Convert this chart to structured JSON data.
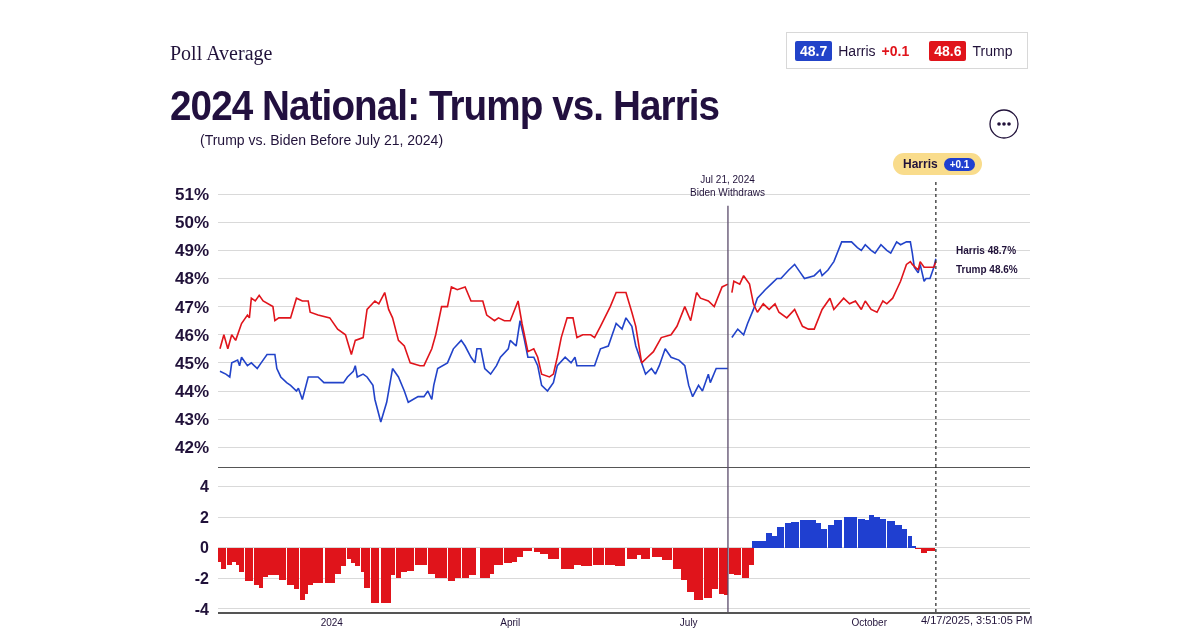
{
  "chart_data": [
    {
      "type": "line",
      "title": "2024 National: Trump vs. Harris",
      "subtitle": "(Trump vs. Biden Before July 21, 2024)",
      "legend": "top right",
      "grid": "y",
      "tick_labels": "y",
      "xlim": [
        "2023-11-04",
        "2024-12-22"
      ],
      "ylim": [
        41.3,
        51.5
      ],
      "yticks": [
        {
          "value": 42,
          "label": "42%"
        },
        {
          "value": 43,
          "label": "43%"
        },
        {
          "value": 44,
          "label": "44%"
        },
        {
          "value": 45,
          "label": "45%"
        },
        {
          "value": 46,
          "label": "46%"
        },
        {
          "value": 47,
          "label": "47%"
        },
        {
          "value": 48,
          "label": "48%"
        },
        {
          "value": 49,
          "label": "49%"
        },
        {
          "value": 50,
          "label": "50%"
        },
        {
          "value": 51,
          "label": "51%"
        }
      ],
      "ref_lines": [
        {
          "axis": "x",
          "value": "2024-07-21",
          "label": "Jul 21, 2024\nBiden Withdraws",
          "color": "#5a4a6a",
          "line_style": "solid"
        },
        {
          "axis": "x",
          "value": "2024-11-04",
          "label": null,
          "color": "#333333",
          "line_style": "dotted"
        }
      ],
      "annotations": [
        "Poll Average",
        "48.7",
        "+0.1",
        "48.6",
        "Harris",
        "+0.1",
        {
          "text": "Harris 48.7%",
          "x": "2024-11-04",
          "y": 48.7
        },
        {
          "text": "Trump 48.6%",
          "x": "2024-11-04",
          "y": 48.6
        }
      ],
      "series": [
        {
          "name": "Harris",
          "color": "#2243c9",
          "x": [
            "2023-11-05",
            "2023-11-08",
            "2023-11-10",
            "2023-11-11",
            "2023-11-14",
            "2023-11-15",
            "2023-11-16",
            "2023-11-19",
            "2023-11-21",
            "2023-11-24",
            "2023-11-26",
            "2023-11-29",
            "2023-12-03",
            "2023-12-04",
            "2023-12-06",
            "2023-12-09",
            "2023-12-11",
            "2023-12-14",
            "2023-12-15",
            "2023-12-17",
            "2023-12-20",
            "2023-12-25",
            "2023-12-28",
            "2023-12-31",
            "2024-01-04",
            "2024-01-07",
            "2024-01-09",
            "2024-01-12",
            "2024-01-13",
            "2024-01-14",
            "2024-01-17",
            "2024-01-19",
            "2024-01-22",
            "2024-01-23",
            "2024-01-26",
            "2024-01-29",
            "2024-01-30",
            "2024-02-01",
            "2024-02-04",
            "2024-02-07",
            "2024-02-09",
            "2024-02-14",
            "2024-02-17",
            "2024-02-19",
            "2024-02-21",
            "2024-02-22",
            "2024-02-24",
            "2024-02-29",
            "2024-03-03",
            "2024-03-07",
            "2024-03-09",
            "2024-03-12",
            "2024-03-14",
            "2024-03-15",
            "2024-03-17",
            "2024-03-19",
            "2024-03-22",
            "2024-03-25",
            "2024-03-27",
            "2024-03-31",
            "2024-04-01",
            "2024-04-04",
            "2024-04-06",
            "2024-04-08",
            "2024-04-10",
            "2024-04-13",
            "2024-04-15",
            "2024-04-17",
            "2024-04-20",
            "2024-04-23",
            "2024-04-25",
            "2024-04-29",
            "2024-05-02",
            "2024-05-04",
            "2024-05-05",
            "2024-05-14",
            "2024-05-17",
            "2024-05-21",
            "2024-05-23",
            "2024-05-25",
            "2024-05-28",
            "2024-05-30",
            "2024-06-02",
            "2024-06-04",
            "2024-06-08",
            "2024-06-09",
            "2024-06-12",
            "2024-06-14",
            "2024-06-16",
            "2024-06-19",
            "2024-06-22",
            "2024-06-26",
            "2024-06-29",
            "2024-07-01",
            "2024-07-03",
            "2024-07-06",
            "2024-07-08",
            "2024-07-11",
            "2024-07-12",
            "2024-07-15",
            "2024-07-18",
            "2024-07-21",
            "2024-07-22",
            "2024-07-23",
            "2024-07-26",
            "2024-07-29",
            "2024-07-31",
            "2024-08-03",
            "2024-08-05",
            "2024-08-09",
            "2024-08-12",
            "2024-08-15",
            "2024-08-17",
            "2024-08-21",
            "2024-08-24",
            "2024-08-27",
            "2024-08-29",
            "2024-09-03",
            "2024-09-06",
            "2024-09-07",
            "2024-09-10",
            "2024-09-12",
            "2024-09-13",
            "2024-09-17",
            "2024-09-19",
            "2024-09-22",
            "2024-09-25",
            "2024-09-27",
            "2024-09-29",
            "2024-10-02",
            "2024-10-04",
            "2024-10-07",
            "2024-10-10",
            "2024-10-12",
            "2024-10-15",
            "2024-10-17",
            "2024-10-20",
            "2024-10-22",
            "2024-10-23",
            "2024-10-24",
            "2024-10-26",
            "2024-10-27",
            "2024-10-29",
            "2024-10-30",
            "2024-11-01",
            "2024-11-03",
            "2024-11-04"
          ],
          "values": [
            44.7,
            44.6,
            44.5,
            45.0,
            45.1,
            44.9,
            45.2,
            44.9,
            45.0,
            44.8,
            45.0,
            45.3,
            45.3,
            44.8,
            44.5,
            44.3,
            44.2,
            44.0,
            44.1,
            43.7,
            44.5,
            44.5,
            44.3,
            44.3,
            44.3,
            44.3,
            44.5,
            44.7,
            44.9,
            44.5,
            44.6,
            44.5,
            44.2,
            43.7,
            42.9,
            43.6,
            44.0,
            44.8,
            44.5,
            44.0,
            43.6,
            43.8,
            43.8,
            44.0,
            43.7,
            44.2,
            44.8,
            45.0,
            45.5,
            45.8,
            45.6,
            45.2,
            45.0,
            45.5,
            45.5,
            44.8,
            44.6,
            44.9,
            45.2,
            45.5,
            45.8,
            45.6,
            46.5,
            45.9,
            45.2,
            45.2,
            44.9,
            44.2,
            44.0,
            44.3,
            44.9,
            45.2,
            45.0,
            45.2,
            44.9,
            44.9,
            45.5,
            45.6,
            46.0,
            46.4,
            46.2,
            46.6,
            46.3,
            45.6,
            44.8,
            44.6,
            44.8,
            44.6,
            44.9,
            45.5,
            45.2,
            45.1,
            44.9,
            44.2,
            43.8,
            44.2,
            44.0,
            44.6,
            44.3,
            44.8,
            44.8,
            44.8,
            null,
            45.9,
            46.2,
            46.0,
            46.4,
            46.9,
            47.3,
            47.6,
            47.8,
            48.0,
            48.0,
            48.3,
            48.5,
            48.2,
            48.0,
            48.1,
            48.3,
            48.1,
            48.3,
            48.5,
            48.6,
            49.3,
            49.3,
            49.3,
            49.1,
            49.0,
            49.2,
            49.0,
            48.9,
            49.2,
            49.0,
            48.9,
            49.3,
            49.2,
            49.3,
            49.3,
            48.9,
            48.4,
            48.2,
            48.5,
            47.9,
            48.0,
            48.0,
            48.4,
            48.7
          ]
        },
        {
          "name": "Trump",
          "color": "#e0141b",
          "x": [
            "2023-11-05",
            "2023-11-07",
            "2023-11-09",
            "2023-11-11",
            "2023-11-13",
            "2023-11-16",
            "2023-11-19",
            "2023-11-20",
            "2023-11-21",
            "2023-11-23",
            "2023-11-25",
            "2023-11-27",
            "2023-12-02",
            "2023-12-03",
            "2023-12-05",
            "2023-12-11",
            "2023-12-14",
            "2023-12-17",
            "2023-12-20",
            "2023-12-21",
            "2023-12-25",
            "2023-12-31",
            "2024-01-04",
            "2024-01-08",
            "2024-01-11",
            "2024-01-13",
            "2024-01-17",
            "2024-01-19",
            "2024-01-23",
            "2024-01-25",
            "2024-01-28",
            "2024-01-30",
            "2024-02-01",
            "2024-02-04",
            "2024-02-07",
            "2024-02-10",
            "2024-02-15",
            "2024-02-17",
            "2024-02-21",
            "2024-02-23",
            "2024-02-26",
            "2024-02-29",
            "2024-03-02",
            "2024-03-05",
            "2024-03-09",
            "2024-03-12",
            "2024-03-18",
            "2024-03-20",
            "2024-03-24",
            "2024-03-26",
            "2024-03-29",
            "2024-04-01",
            "2024-04-05",
            "2024-04-07",
            "2024-04-10",
            "2024-04-13",
            "2024-04-15",
            "2024-04-17",
            "2024-04-21",
            "2024-04-23",
            "2024-04-25",
            "2024-04-27",
            "2024-04-30",
            "2024-05-03",
            "2024-05-05",
            "2024-05-08",
            "2024-05-12",
            "2024-05-14",
            "2024-05-17",
            "2024-05-22",
            "2024-05-25",
            "2024-05-30",
            "2024-06-02",
            "2024-06-04",
            "2024-06-07",
            "2024-06-10",
            "2024-06-13",
            "2024-06-17",
            "2024-06-22",
            "2024-06-25",
            "2024-06-29",
            "2024-07-02",
            "2024-07-05",
            "2024-07-07",
            "2024-07-11",
            "2024-07-14",
            "2024-07-18",
            "2024-07-21",
            "2024-07-22",
            "2024-07-23",
            "2024-07-24",
            "2024-07-27",
            "2024-07-29",
            "2024-08-01",
            "2024-08-03",
            "2024-08-05",
            "2024-08-08",
            "2024-08-11",
            "2024-08-14",
            "2024-08-16",
            "2024-08-20",
            "2024-08-24",
            "2024-08-28",
            "2024-08-31",
            "2024-09-03",
            "2024-09-07",
            "2024-09-11",
            "2024-09-13",
            "2024-09-18",
            "2024-09-21",
            "2024-09-24",
            "2024-09-27",
            "2024-09-29",
            "2024-10-02",
            "2024-10-05",
            "2024-10-08",
            "2024-10-10",
            "2024-10-13",
            "2024-10-15",
            "2024-10-17",
            "2024-10-20",
            "2024-10-22",
            "2024-10-23",
            "2024-10-26",
            "2024-10-27",
            "2024-10-29",
            "2024-11-03",
            "2024-11-04"
          ],
          "values": [
            45.5,
            46.0,
            45.5,
            46.0,
            45.8,
            46.4,
            46.7,
            46.6,
            47.3,
            47.2,
            47.4,
            47.2,
            47.0,
            46.5,
            46.6,
            46.6,
            47.3,
            47.2,
            47.2,
            46.8,
            46.7,
            46.6,
            46.2,
            46.0,
            45.3,
            45.8,
            45.9,
            46.9,
            47.2,
            47.1,
            47.5,
            46.9,
            46.6,
            45.8,
            45.6,
            45.0,
            44.9,
            44.9,
            45.5,
            46.0,
            47.0,
            47.0,
            47.7,
            47.6,
            47.7,
            47.2,
            47.2,
            46.7,
            46.5,
            46.6,
            46.5,
            46.5,
            47.2,
            46.4,
            45.4,
            45.5,
            45.2,
            44.6,
            44.5,
            44.6,
            45.2,
            45.9,
            46.6,
            46.6,
            45.9,
            46.0,
            46.0,
            45.9,
            46.3,
            47.0,
            47.5,
            47.5,
            46.8,
            46.3,
            45.0,
            45.2,
            45.4,
            45.9,
            46.0,
            46.3,
            47.0,
            46.5,
            47.5,
            47.3,
            47.2,
            47.0,
            47.7,
            47.8,
            null,
            47.5,
            47.9,
            47.8,
            48.1,
            47.8,
            47.1,
            46.8,
            47.1,
            46.9,
            47.1,
            46.8,
            46.6,
            46.9,
            46.3,
            46.2,
            46.2,
            46.9,
            47.3,
            46.9,
            47.3,
            47.1,
            47.2,
            46.9,
            47.2,
            46.9,
            46.8,
            47.2,
            47.1,
            47.3,
            47.6,
            47.9,
            48.5,
            48.6,
            48.5,
            48.3,
            48.6,
            48.4,
            48.4,
            48.6
          ]
        }
      ]
    },
    {
      "type": "bar",
      "xlim": [
        "2023-11-04",
        "2024-12-22"
      ],
      "ylim": [
        -4.2,
        5.3
      ],
      "grid": "y",
      "yticks": [
        -4,
        -2,
        0,
        2,
        4
      ],
      "xticks": [
        {
          "value": "2024-01-01",
          "label": "2024"
        },
        {
          "value": "2024-04-01",
          "label": "April"
        },
        {
          "value": "2024-07-01",
          "label": "July"
        },
        {
          "value": "2024-10-01",
          "label": "October"
        }
      ],
      "ref_lines": [
        {
          "axis": "x",
          "value": "2024-07-21",
          "label": null,
          "color": "#5a4a6a",
          "line_style": "solid"
        },
        {
          "axis": "x",
          "value": "2024-11-04",
          "label": null,
          "color": "#333333",
          "line_style": "dotted"
        }
      ],
      "annotations": [
        "4/17/2025, 3:51:05 PM"
      ],
      "series": [
        {
          "color": "#e0141b",
          "x": [
            "2023-11-05",
            "2023-11-07",
            "2023-11-10",
            "2023-11-12",
            "2023-11-14",
            "2023-11-16",
            "2023-11-20",
            "2023-11-24",
            "2023-11-26",
            "2023-11-28",
            "2023-12-01",
            "2023-12-04",
            "2023-12-07",
            "2023-12-11",
            "2023-12-14",
            "2023-12-17",
            "2023-12-19",
            "2023-12-21",
            "2023-12-25",
            "2023-12-31",
            "2024-01-04",
            "2024-01-07",
            "2024-01-10",
            "2024-01-12",
            "2024-01-14",
            "2024-01-17",
            "2024-01-19",
            "2024-01-23",
            "2024-01-28",
            "2024-01-30",
            "2024-02-01",
            "2024-02-04",
            "2024-02-07",
            "2024-02-10",
            "2024-02-14",
            "2024-02-17",
            "2024-02-21",
            "2024-02-24",
            "2024-02-27",
            "2024-03-02",
            "2024-03-05",
            "2024-03-09",
            "2024-03-12",
            "2024-03-19",
            "2024-03-22",
            "2024-03-26",
            "2024-03-31",
            "2024-04-03",
            "2024-04-06",
            "2024-04-10",
            "2024-04-15",
            "2024-04-18",
            "2024-04-23",
            "2024-04-29",
            "2024-05-02",
            "2024-05-05",
            "2024-05-10",
            "2024-05-16",
            "2024-05-22",
            "2024-05-27",
            "2024-06-02",
            "2024-06-06",
            "2024-06-09",
            "2024-06-15",
            "2024-06-20",
            "2024-06-25",
            "2024-06-29",
            "2024-07-02",
            "2024-07-06",
            "2024-07-11",
            "2024-07-14",
            "2024-07-18",
            "2024-07-20",
            "2024-07-23",
            "2024-07-26",
            "2024-07-30",
            "2024-08-02",
            "2024-10-26",
            "2024-10-29",
            "2024-11-01"
          ],
          "values": [
            -0.9,
            -1.35,
            -1.1,
            -0.9,
            -1.1,
            -1.6,
            -2.2,
            -2.4,
            -2.6,
            -1.9,
            -1.75,
            -1.75,
            -2.1,
            -2.4,
            -2.7,
            -3.4,
            -3.0,
            -2.4,
            -2.3,
            -2.3,
            -1.7,
            -1.2,
            -0.7,
            -1.0,
            -1.2,
            -1.6,
            -2.6,
            -3.6,
            -3.6,
            -3.6,
            -1.8,
            -2.0,
            -1.6,
            -1.5,
            -1.1,
            -1.1,
            -1.7,
            -2.0,
            -2.0,
            -2.2,
            -2.0,
            -2.0,
            -1.8,
            -2.0,
            -1.7,
            -1.1,
            -1.0,
            -0.9,
            -0.6,
            -0.2,
            -0.3,
            -0.4,
            -0.7,
            -1.35,
            -1.35,
            -1.1,
            -1.2,
            -1.1,
            -1.1,
            -1.2,
            -0.7,
            -0.45,
            -0.7,
            -0.6,
            -0.8,
            -1.35,
            -2.1,
            -2.9,
            -3.4,
            -3.3,
            -2.7,
            -3.0,
            -3.1,
            -1.7,
            -1.8,
            -2.0,
            -1.1,
            -0.05,
            -0.35,
            -0.2
          ]
        },
        {
          "color": "#1f3fd0",
          "x": [
            "2024-08-05",
            "2024-08-08",
            "2024-08-11",
            "2024-08-14",
            "2024-08-17",
            "2024-08-21",
            "2024-08-24",
            "2024-08-29",
            "2024-09-02",
            "2024-09-05",
            "2024-09-08",
            "2024-09-12",
            "2024-09-15",
            "2024-09-20",
            "2024-09-23",
            "2024-09-27",
            "2024-09-30",
            "2024-10-02",
            "2024-10-05",
            "2024-10-08",
            "2024-10-12",
            "2024-10-16",
            "2024-10-19",
            "2024-10-22",
            "2024-10-23"
          ],
          "values": [
            0.45,
            0.45,
            1.0,
            0.8,
            1.35,
            1.6,
            1.7,
            1.8,
            1.85,
            1.6,
            1.25,
            1.5,
            1.8,
            2.05,
            2.0,
            1.9,
            1.85,
            2.15,
            2.0,
            1.9,
            1.75,
            1.5,
            1.25,
            0.8,
            0.1
          ]
        }
      ]
    }
  ]
}
